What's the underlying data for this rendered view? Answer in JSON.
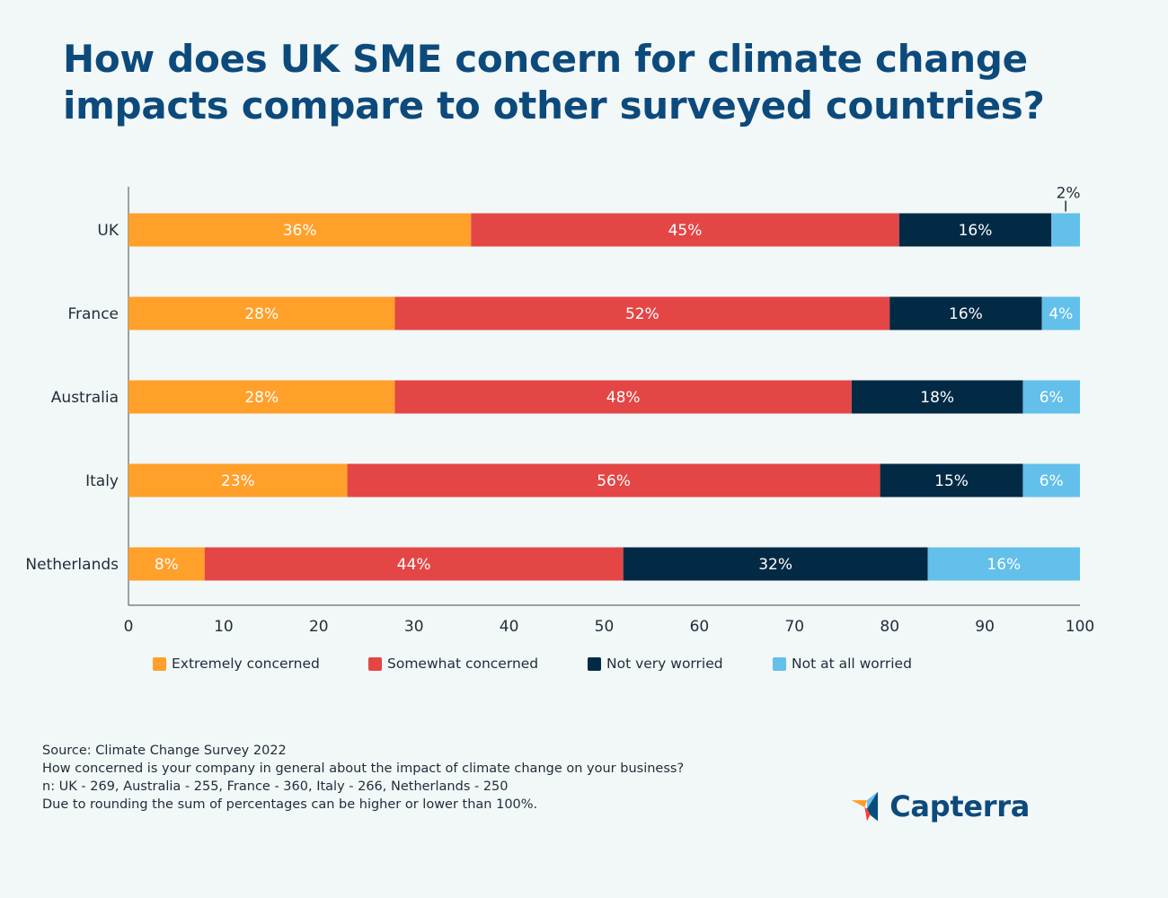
{
  "title": "How does UK SME concern for climate change impacts compare to other surveyed countries?",
  "chart_data": {
    "type": "bar",
    "orientation": "horizontal",
    "stacked": true,
    "categories": [
      "UK",
      "France",
      "Australia",
      "Italy",
      "Netherlands"
    ],
    "series": [
      {
        "name": "Extremely concerned",
        "color": "#ffa02b",
        "values": [
          36,
          28,
          28,
          23,
          8
        ]
      },
      {
        "name": "Somewhat concerned",
        "color": "#e44646",
        "values": [
          45,
          52,
          48,
          56,
          44
        ]
      },
      {
        "name": "Not very worried",
        "color": "#032a45",
        "values": [
          16,
          16,
          18,
          15,
          32
        ]
      },
      {
        "name": "Not at all worried",
        "color": "#62c0ea",
        "values": [
          2,
          4,
          6,
          6,
          16
        ]
      }
    ],
    "xlim": [
      0,
      100
    ],
    "xticks": [
      0,
      10,
      20,
      30,
      40,
      50,
      60,
      70,
      80,
      90,
      100
    ],
    "legend_position": "bottom"
  },
  "footnotes": [
    "Source: Climate Change Survey 2022",
    "How concerned is your company in general about the impact of climate change on your business?",
    "n: UK - 269, Australia - 255, France - 360, Italy - 266, Netherlands - 250",
    "Due to rounding the sum of percentages can be higher or lower than 100%."
  ],
  "brand": {
    "name": "Capterra",
    "icon": "capterra-arrow-icon",
    "colors": {
      "orange": "#ff9d28",
      "blue": "#68c5ed",
      "navy": "#044d80",
      "red": "#ff3d2e"
    }
  }
}
